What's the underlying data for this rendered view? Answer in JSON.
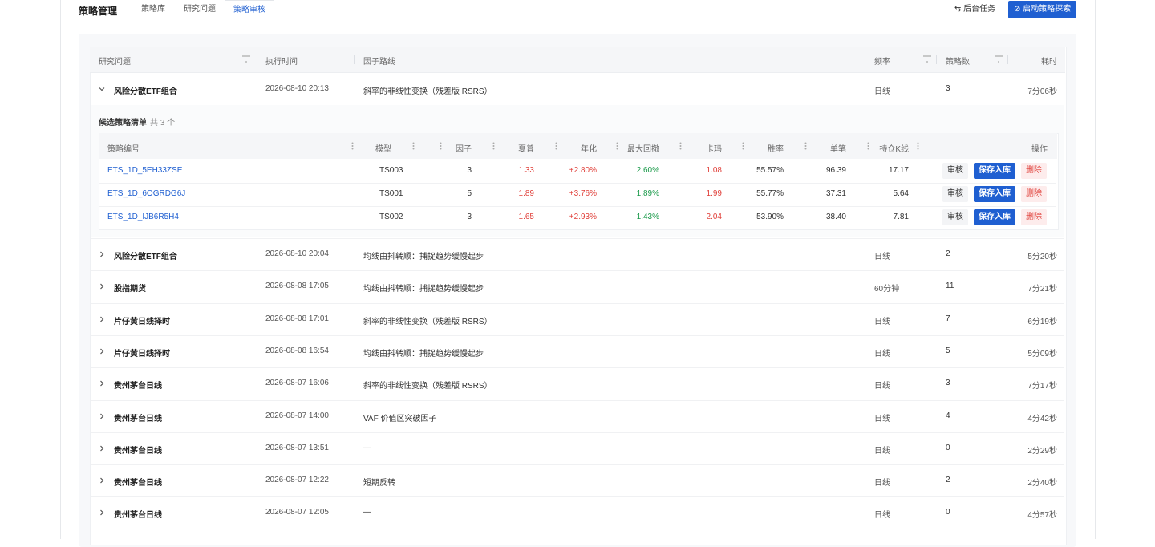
{
  "header": {
    "title": "策略管理",
    "tabs": [
      "策略库",
      "研究问题",
      "策略审核"
    ],
    "buttons": [
      "后台任务",
      "启动策略探索"
    ]
  },
  "table": {
    "columns": [
      "研究问题",
      "执行时间",
      "因子路线",
      "频率",
      "策略数",
      "耗时"
    ],
    "rows": [
      [
        "风险分散ETF组合",
        "2026-08-10 20:13",
        "斜率的非线性变换（残差版 RSRS）",
        "日线",
        "3",
        "7分06秒"
      ],
      [
        "风险分散ETF组合",
        "2026-08-10 20:04",
        "均线由抖转顺：捕捉趋势缓慢起步",
        "日线",
        "2",
        "5分20秒"
      ],
      [
        "股指期货",
        "2026-08-08 17:05",
        "均线由抖转顺：捕捉趋势缓慢起步",
        "60分钟",
        "11",
        "7分21秒"
      ],
      [
        "片仔黄日线择时",
        "2026-08-08 17:01",
        "斜率的非线性变换（残差版 RSRS）",
        "日线",
        "7",
        "6分19秒"
      ],
      [
        "片仔黄日线择时",
        "2026-08-08 16:54",
        "均线由抖转顺：捕捉趋势缓慢起步",
        "日线",
        "5",
        "5分09秒"
      ],
      [
        "贵州茅台日线",
        "2026-08-07 16:06",
        "斜率的非线性变换（残差版 RSRS）",
        "日线",
        "3",
        "7分17秒"
      ],
      [
        "贵州茅台日线",
        "2026-08-07 14:00",
        "VAF 价值区突破因子",
        "日线",
        "4",
        "4分42秒"
      ],
      [
        "贵州茅台日线",
        "2026-08-07 13:51",
        "—",
        "日线",
        "0",
        "2分29秒"
      ],
      [
        "贵州茅台日线",
        "2026-08-07 12:22",
        "短期反转",
        "日线",
        "2",
        "2分40秒"
      ],
      [
        "贵州茅台日线",
        "2026-08-07 12:05",
        "—",
        "日线",
        "0",
        "4分57秒"
      ]
    ],
    "expanded": {
      "label": "候选策略清单",
      "count": "共 3 个",
      "columns": [
        "策略编号",
        "模型",
        "因子",
        "夏普",
        "年化",
        "最大回撤",
        "卡玛",
        "胜率",
        "单笔",
        "持仓K线",
        "操作"
      ],
      "actions": [
        "审核",
        "保存入库",
        "删除"
      ],
      "rows": [
        [
          "ETS_1D_5EH33ZSE",
          "TS003",
          "3",
          "1.33",
          "+2.80%",
          "2.60%",
          "1.08",
          "55.57%",
          "96.39",
          "17.17"
        ],
        [
          "ETS_1D_6OGRDG6J",
          "TS001",
          "5",
          "1.89",
          "+3.76%",
          "1.89%",
          "1.99",
          "55.77%",
          "37.31",
          "5.64"
        ],
        [
          "ETS_1D_IJB6R5H4",
          "TS002",
          "3",
          "1.65",
          "+2.93%",
          "1.43%",
          "2.04",
          "53.90%",
          "38.40",
          "7.81"
        ]
      ]
    }
  }
}
